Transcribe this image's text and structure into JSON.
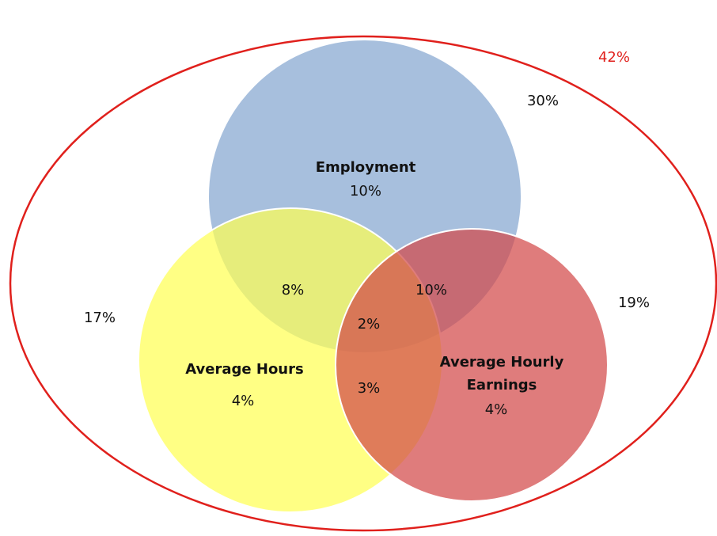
{
  "venn": {
    "sets": [
      {
        "label": [
          "Employment"
        ],
        "only": "10%"
      },
      {
        "label": [
          "Average Hours"
        ],
        "only": "4%"
      },
      {
        "label": [
          "Average Hourly",
          "Earnings"
        ],
        "only": "4%"
      }
    ],
    "overlaps": {
      "employment_hours": "8%",
      "employment_earnings": "10%",
      "all_three": "2%",
      "hours_earnings": "3%"
    },
    "outside": {
      "universe": "42%",
      "top_right": "30%",
      "left": "17%",
      "right": "19%"
    }
  }
}
